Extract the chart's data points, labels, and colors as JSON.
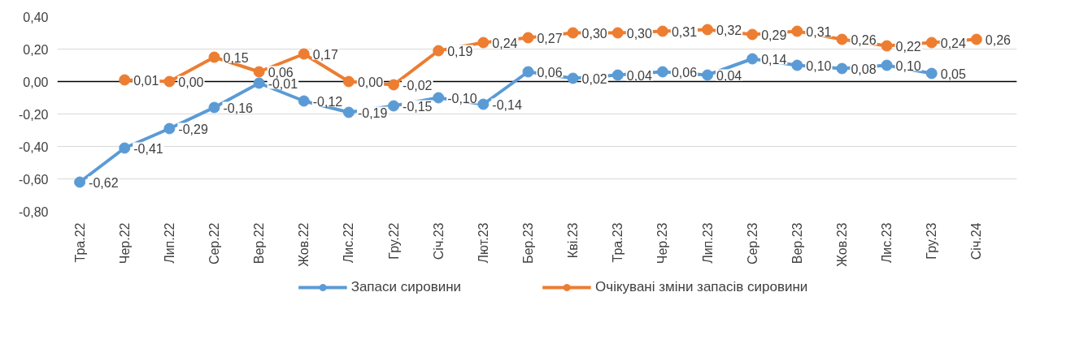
{
  "chart_data": {
    "type": "line",
    "categories": [
      "Тра.22",
      "Чер.22",
      "Лип.22",
      "Сер.22",
      "Вер.22",
      "Жов.22",
      "Лис.22",
      "Гру.22",
      "Січ.23",
      "Лют.23",
      "Бер.23",
      "Кві.23",
      "Тра.23",
      "Чер.23",
      "Лип.23",
      "Сер.23",
      "Вер.23",
      "Жов.23",
      "Лис.23",
      "Гру.23",
      "Січ.24"
    ],
    "series": [
      {
        "name": "Запаси сировини",
        "color": "#5b9bd5",
        "values": [
          -0.62,
          -0.41,
          -0.29,
          -0.16,
          -0.01,
          -0.12,
          -0.19,
          -0.15,
          -0.1,
          -0.14,
          0.06,
          0.02,
          0.04,
          0.06,
          0.04,
          0.14,
          0.1,
          0.08,
          0.1,
          0.05,
          null
        ],
        "value_labels": [
          "-0,62",
          "-0,41",
          "-0,29",
          "-0,16",
          "-0,01",
          "-0,12",
          "-0,19",
          "-0,15",
          "-0,10",
          "-0,14",
          "0,06",
          "0,02",
          "0,04",
          "0,06",
          "0,04",
          "0,14",
          "0,10",
          "0,08",
          "0,10",
          "0,05",
          null
        ]
      },
      {
        "name": "Очікувані зміни запасів сировини",
        "color": "#ed7d31",
        "values": [
          null,
          0.01,
          0.0,
          0.15,
          0.06,
          0.17,
          0.0,
          -0.02,
          0.19,
          0.24,
          0.27,
          0.3,
          0.3,
          0.31,
          0.32,
          0.29,
          0.31,
          0.26,
          0.22,
          0.24,
          0.26
        ],
        "value_labels": [
          null,
          "0,01",
          "0,00",
          "0,15",
          "0,06",
          "0,17",
          "0,00",
          "-0,02",
          "0,19",
          "0,24",
          "0,27",
          "0,30",
          "0,30",
          "0,31",
          "0,32",
          "0,29",
          "0,31",
          "0,26",
          "0,22",
          "0,24",
          "0,26"
        ]
      }
    ],
    "ylim": [
      -0.8,
      0.4
    ],
    "yticks": [
      {
        "value": -0.8,
        "label": "-0,80"
      },
      {
        "value": -0.6,
        "label": "-0,60"
      },
      {
        "value": -0.4,
        "label": "-0,40"
      },
      {
        "value": -0.2,
        "label": "-0,20"
      },
      {
        "value": 0,
        "label": "0,00"
      },
      {
        "value": 0.2,
        "label": "0,20"
      },
      {
        "value": 0.4,
        "label": "0,40"
      }
    ],
    "grid": "y",
    "legend": "bottom",
    "marker": "circle",
    "line_style": "solid"
  }
}
